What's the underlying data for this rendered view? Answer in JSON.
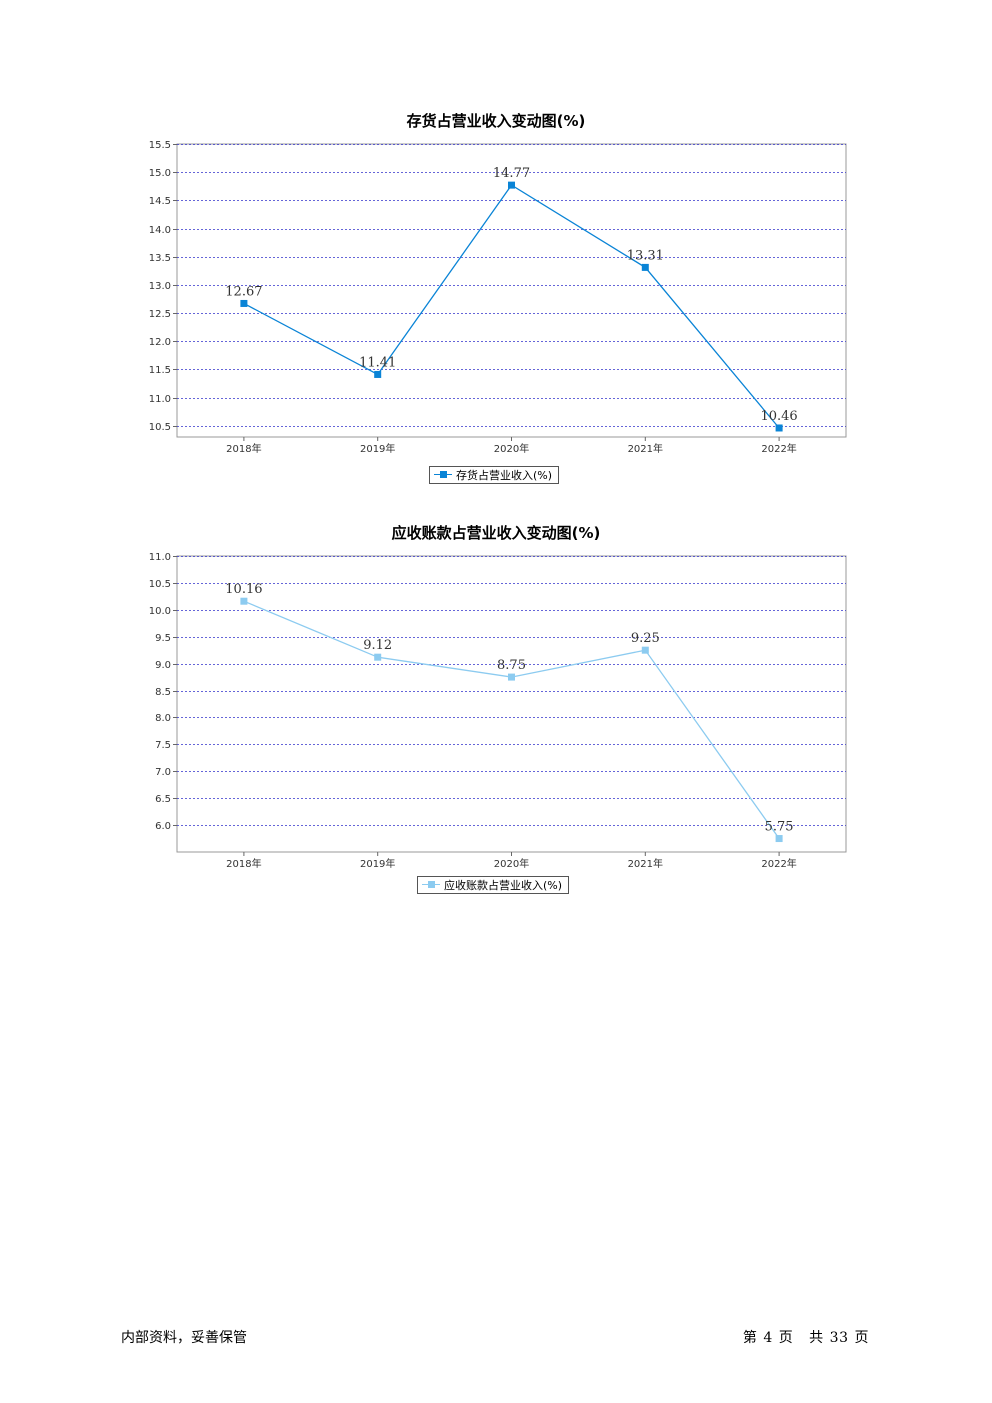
{
  "chart_data": [
    {
      "type": "line",
      "title": "存货占营业收入变动图(%)",
      "categories": [
        "2018年",
        "2019年",
        "2020年",
        "2021年",
        "2022年"
      ],
      "series": [
        {
          "name": "存货占营业收入(%)",
          "values": [
            12.67,
            11.41,
            14.77,
            13.31,
            10.46
          ],
          "labels": [
            "12.67",
            "11.41",
            "14.77",
            "13.31",
            "10.46"
          ]
        }
      ],
      "yticks": [
        "10.5",
        "11.0",
        "11.5",
        "12.0",
        "12.5",
        "13.0",
        "13.5",
        "14.0",
        "14.5",
        "15.0",
        "15.5"
      ],
      "ylim": [
        10.3,
        15.5
      ],
      "grid": true,
      "legend_position": "bottom-center",
      "color": "#0a84d6"
    },
    {
      "type": "line",
      "title": "应收账款占营业收入变动图(%)",
      "categories": [
        "2018年",
        "2019年",
        "2020年",
        "2021年",
        "2022年"
      ],
      "series": [
        {
          "name": "应收账款占营业收入(%)",
          "values": [
            10.16,
            9.12,
            8.75,
            9.25,
            5.75
          ],
          "labels": [
            "10.16",
            "9.12",
            "8.75",
            "9.25",
            "5.75"
          ]
        }
      ],
      "yticks": [
        "6.0",
        "6.5",
        "7.0",
        "7.5",
        "8.0",
        "8.5",
        "9.0",
        "9.5",
        "10.0",
        "10.5",
        "11.0"
      ],
      "ylim": [
        5.5,
        11.0
      ],
      "grid": true,
      "legend_position": "bottom-center",
      "color": "#8ccbf0"
    }
  ],
  "footer": {
    "left": "内部资料，妥善保管",
    "page_word": "第",
    "page_num": "4",
    "page_unit": "页",
    "total_word": "共",
    "total_num": "33",
    "total_unit": "页"
  }
}
